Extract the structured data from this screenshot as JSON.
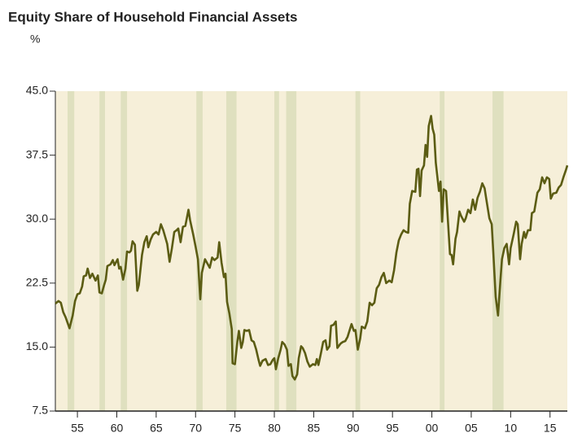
{
  "chart_data": {
    "type": "line",
    "title": "Equity Share of Household Financial Assets",
    "subtitle": "%",
    "xlim": [
      1952.2,
      2017.2
    ],
    "xticks": [
      {
        "value": 1955,
        "label": "55"
      },
      {
        "value": 1960,
        "label": "60"
      },
      {
        "value": 1965,
        "label": "65"
      },
      {
        "value": 1970,
        "label": "70"
      },
      {
        "value": 1975,
        "label": "75"
      },
      {
        "value": 1980,
        "label": "80"
      },
      {
        "value": 1985,
        "label": "85"
      },
      {
        "value": 1990,
        "label": "90"
      },
      {
        "value": 1995,
        "label": "95"
      },
      {
        "value": 2000,
        "label": "00"
      },
      {
        "value": 2005,
        "label": "05"
      },
      {
        "value": 2010,
        "label": "10"
      },
      {
        "value": 2015,
        "label": "15"
      }
    ],
    "ylim": [
      7.5,
      45
    ],
    "yticks": [
      {
        "value": 7.5,
        "label": "7.5"
      },
      {
        "value": 15,
        "label": "15.0"
      },
      22.5,
      {
        "value": 30,
        "label": "30.0"
      },
      37.5,
      {
        "value": 45,
        "label": "45.0"
      }
    ],
    "grid": false,
    "background_color": "#f6efd9",
    "shaded_periods_color": "#dfe0bf",
    "shaded_periods": [
      [
        1953.75,
        1954.6
      ],
      [
        1957.8,
        1958.5
      ],
      [
        1960.5,
        1961.3
      ],
      [
        1970.1,
        1970.9
      ],
      [
        1973.9,
        1975.2
      ],
      [
        1980.0,
        1980.6
      ],
      [
        1981.5,
        1982.8
      ],
      [
        1990.3,
        1990.9
      ],
      [
        2001.0,
        2001.6
      ],
      [
        2007.7,
        2009.1
      ]
    ],
    "series": [
      {
        "color": "#5b5c13",
        "x": [
          1952.2,
          1952.6,
          1952.9,
          1953.2,
          1953.5,
          1954.0,
          1954.4,
          1954.7,
          1955.0,
          1955.3,
          1955.6,
          1955.8,
          1956.1,
          1956.3,
          1956.6,
          1956.9,
          1957.3,
          1957.6,
          1957.8,
          1958.1,
          1958.4,
          1958.6,
          1958.8,
          1959.2,
          1959.5,
          1959.7,
          1960.1,
          1960.3,
          1960.5,
          1960.8,
          1961.1,
          1961.3,
          1961.6,
          1961.8,
          1962.0,
          1962.3,
          1962.6,
          1962.8,
          1963.2,
          1963.5,
          1963.8,
          1964.0,
          1964.3,
          1964.6,
          1965.0,
          1965.3,
          1965.6,
          1965.9,
          1966.4,
          1966.7,
          1967.0,
          1967.3,
          1967.6,
          1967.8,
          1968.1,
          1968.4,
          1968.7,
          1969.1,
          1969.3,
          1969.7,
          1970.0,
          1970.3,
          1970.6,
          1970.8,
          1971.2,
          1971.5,
          1971.8,
          1972.1,
          1972.4,
          1972.8,
          1973.0,
          1973.3,
          1973.6,
          1973.8,
          1974.0,
          1974.3,
          1974.6,
          1974.7,
          1975.0,
          1975.3,
          1975.5,
          1975.8,
          1976.0,
          1976.2,
          1976.5,
          1976.8,
          1977.1,
          1977.4,
          1977.7,
          1978.0,
          1978.2,
          1978.5,
          1978.9,
          1979.2,
          1979.5,
          1979.8,
          1980.0,
          1980.2,
          1980.5,
          1980.8,
          1981.0,
          1981.3,
          1981.6,
          1981.8,
          1982.1,
          1982.3,
          1982.6,
          1982.9,
          1983.1,
          1983.4,
          1983.6,
          1983.9,
          1984.2,
          1984.5,
          1984.9,
          1985.2,
          1985.4,
          1985.6,
          1985.9,
          1986.2,
          1986.5,
          1986.7,
          1987.0,
          1987.2,
          1987.5,
          1987.8,
          1988.0,
          1988.4,
          1988.7,
          1989.0,
          1989.3,
          1989.6,
          1989.8,
          1990.1,
          1990.3,
          1990.6,
          1990.9,
          1991.1,
          1991.5,
          1991.8,
          1992.1,
          1992.4,
          1992.7,
          1993.0,
          1993.3,
          1993.6,
          1993.9,
          1994.2,
          1994.6,
          1994.9,
          1995.2,
          1995.5,
          1995.8,
          1996.1,
          1996.4,
          1996.7,
          1997.0,
          1997.2,
          1997.5,
          1997.9,
          1998.1,
          1998.3,
          1998.5,
          1998.7,
          1999.0,
          1999.2,
          1999.4,
          1999.6,
          1999.9,
          2000.1,
          2000.3,
          2000.5,
          2000.9,
          2001.1,
          2001.3,
          2001.5,
          2001.8,
          2002.0,
          2002.3,
          2002.5,
          2002.7,
          2003.0,
          2003.2,
          2003.5,
          2003.7,
          2004.1,
          2004.3,
          2004.6,
          2004.9,
          2005.2,
          2005.5,
          2005.8,
          2006.1,
          2006.4,
          2006.7,
          2006.9,
          2007.3,
          2007.6,
          2007.8,
          2008.1,
          2008.4,
          2008.7,
          2008.9,
          2009.2,
          2009.5,
          2009.8,
          2010.0,
          2010.4,
          2010.7,
          2010.9,
          2011.2,
          2011.4,
          2011.7,
          2011.9,
          2012.2,
          2012.5,
          2012.7,
          2013.0,
          2013.4,
          2013.7,
          2014.0,
          2014.3,
          2014.6,
          2014.9,
          2015.1,
          2015.4,
          2015.8,
          2016.1,
          2016.4,
          2016.7,
          2017.0,
          2017.2
        ],
        "values": [
          20.1,
          20.4,
          20.2,
          19.1,
          18.5,
          17.2,
          18.7,
          20.4,
          21.2,
          21.3,
          22.1,
          23.3,
          23.4,
          24.2,
          23.1,
          23.6,
          22.8,
          23.4,
          21.4,
          21.3,
          22.3,
          22.9,
          24.5,
          24.7,
          25.2,
          24.6,
          25.3,
          24.2,
          24.4,
          22.9,
          24.2,
          26.2,
          26.1,
          26.3,
          27.4,
          27.0,
          21.6,
          22.3,
          25.8,
          27.3,
          28.0,
          26.7,
          27.6,
          28.2,
          28.5,
          28.2,
          29.4,
          28.7,
          27.1,
          25.0,
          26.6,
          28.5,
          28.7,
          28.9,
          27.3,
          29.1,
          29.2,
          31.1,
          29.9,
          28.2,
          26.8,
          25.3,
          20.6,
          23.7,
          25.3,
          24.8,
          24.3,
          25.5,
          25.2,
          25.5,
          27.3,
          24.9,
          23.2,
          23.6,
          20.3,
          18.9,
          17.1,
          13.1,
          13.0,
          15.6,
          16.9,
          14.9,
          15.6,
          17.0,
          16.9,
          17.0,
          15.8,
          15.6,
          14.7,
          13.5,
          12.8,
          13.4,
          13.6,
          12.9,
          13.0,
          13.5,
          13.7,
          12.4,
          13.7,
          14.7,
          15.6,
          15.3,
          14.7,
          12.8,
          13.0,
          11.6,
          11.2,
          11.8,
          13.7,
          15.1,
          14.9,
          14.3,
          13.3,
          12.7,
          13.0,
          12.9,
          13.6,
          12.9,
          14.2,
          15.6,
          15.8,
          14.7,
          15.1,
          17.5,
          17.6,
          18.0,
          14.9,
          15.4,
          15.6,
          15.7,
          16.2,
          17.1,
          17.7,
          16.9,
          17.0,
          14.7,
          16.0,
          17.4,
          17.2,
          18.0,
          20.2,
          19.9,
          20.2,
          21.9,
          22.3,
          23.2,
          23.7,
          22.5,
          22.8,
          22.6,
          24.0,
          26.1,
          27.5,
          28.2,
          28.7,
          28.5,
          28.4,
          31.8,
          33.3,
          33.2,
          35.8,
          35.9,
          32.7,
          35.7,
          36.3,
          38.7,
          37.3,
          40.9,
          42.1,
          40.6,
          39.9,
          36.6,
          33.3,
          34.4,
          29.7,
          33.5,
          33.3,
          30.4,
          25.9,
          25.8,
          24.7,
          27.7,
          28.5,
          30.9,
          30.4,
          29.7,
          30.1,
          31.1,
          30.7,
          32.3,
          31.1,
          32.5,
          33.2,
          34.2,
          33.6,
          32.4,
          30.1,
          29.4,
          26.1,
          20.9,
          18.7,
          22.8,
          25.3,
          26.6,
          27.1,
          24.7,
          26.6,
          28.3,
          29.7,
          29.4,
          25.3,
          27.1,
          28.5,
          27.8,
          28.7,
          28.7,
          30.7,
          30.9,
          33.1,
          33.5,
          34.9,
          34.2,
          34.9,
          34.7,
          32.4,
          33.0,
          33.1,
          33.7,
          34.0,
          34.9,
          35.7,
          36.3
        ]
      }
    ]
  }
}
